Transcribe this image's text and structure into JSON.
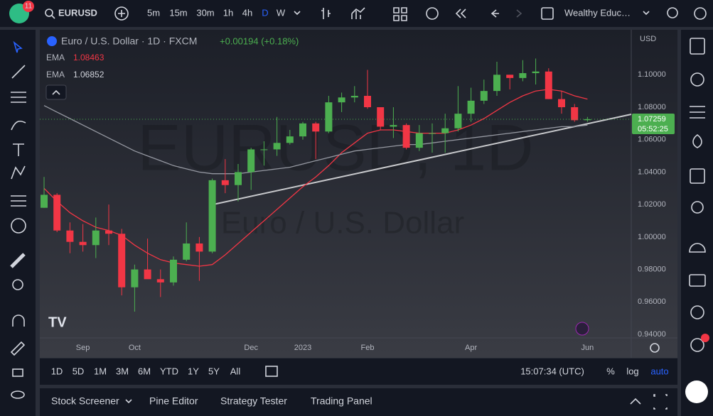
{
  "toolbar": {
    "badge": "11",
    "symbol": "EURUSD",
    "intervals": [
      "5m",
      "15m",
      "30m",
      "1h",
      "4h",
      "D",
      "W"
    ],
    "layout_name": "Wealthy Educ…"
  },
  "chart_data": {
    "type": "candlestick",
    "title": "Euro / U.S. Dollar · 1D · FXCM",
    "change": "+0.00194 (+0.18%)",
    "watermark": [
      "EURUSD, 1D",
      "Euro / U.S. Dollar"
    ],
    "currency": "USD",
    "categories": [
      null,
      null,
      null,
      "Sep",
      null,
      null,
      null,
      "Oct",
      null,
      null,
      null,
      null,
      null,
      null,
      null,
      null,
      "Dec",
      null,
      null,
      null,
      "2023",
      null,
      null,
      null,
      null,
      "Feb",
      null,
      null,
      null,
      null,
      null,
      null,
      null,
      "Apr",
      null,
      null,
      null,
      null,
      null,
      null,
      null,
      null,
      "Jun"
    ],
    "open": [
      1.018,
      1.026,
      1.004,
      0.997,
      0.995,
      1.004,
      1.002,
      0.969,
      0.98,
      0.974,
      0.972,
      0.986,
      0.996,
      0.991,
      1.035,
      1.032,
      1.04,
      1.054,
      1.054,
      1.058,
      1.062,
      1.07,
      1.065,
      1.083,
      1.086,
      1.087,
      1.08,
      1.068,
      1.069,
      1.055,
      1.064,
      1.064,
      1.067,
      1.076,
      1.084,
      1.09,
      1.1,
      1.098,
      1.101,
      1.102,
      1.085,
      1.08,
      1.072
    ],
    "high": [
      1.037,
      1.027,
      1.009,
      1.008,
      1.012,
      1.02,
      1.005,
      0.983,
      0.999,
      0.98,
      0.988,
      1.009,
      1.0,
      1.036,
      1.048,
      1.045,
      1.055,
      1.059,
      1.074,
      1.066,
      1.071,
      1.071,
      1.087,
      1.089,
      1.093,
      1.103,
      1.08,
      1.08,
      1.07,
      1.069,
      1.07,
      1.076,
      1.093,
      1.092,
      1.097,
      1.108,
      1.1,
      1.109,
      1.11,
      1.104,
      1.09,
      1.082,
      1.074
    ],
    "low": [
      1.018,
      1.003,
      0.99,
      0.991,
      0.987,
      0.995,
      0.964,
      0.954,
      0.975,
      0.963,
      0.97,
      0.985,
      0.973,
      0.99,
      1.027,
      1.022,
      1.029,
      1.044,
      1.05,
      1.057,
      1.06,
      1.048,
      1.064,
      1.077,
      1.083,
      1.079,
      1.066,
      1.061,
      1.054,
      1.053,
      1.052,
      1.052,
      1.065,
      1.071,
      1.082,
      1.087,
      1.091,
      1.096,
      1.094,
      1.085,
      1.076,
      1.071,
      1.071
    ],
    "close": [
      1.026,
      1.004,
      0.997,
      0.995,
      1.004,
      1.002,
      0.969,
      0.98,
      0.974,
      0.972,
      0.986,
      0.996,
      0.991,
      1.035,
      1.032,
      1.04,
      1.054,
      1.054,
      1.058,
      1.062,
      1.07,
      1.065,
      1.083,
      1.086,
      1.087,
      1.08,
      1.068,
      1.069,
      1.055,
      1.064,
      1.064,
      1.067,
      1.076,
      1.084,
      1.09,
      1.1,
      1.098,
      1.101,
      1.102,
      1.085,
      1.08,
      1.072,
      1.0726
    ],
    "up_color": "#4caf50",
    "down_color": "#f23645",
    "series": [
      {
        "name": "EMA",
        "color": "#f23645",
        "last": 1.08463,
        "values": [
          1.03,
          1.022,
          1.015,
          1.01,
          1.006,
          1.004,
          1.001,
          0.995,
          0.99,
          0.986,
          0.984,
          0.983,
          0.982,
          0.983,
          0.989,
          0.996,
          1.003,
          1.01,
          1.017,
          1.024,
          1.031,
          1.037,
          1.044,
          1.052,
          1.058,
          1.064,
          1.066,
          1.066,
          1.065,
          1.064,
          1.064,
          1.064,
          1.066,
          1.069,
          1.073,
          1.078,
          1.083,
          1.087,
          1.09,
          1.091,
          1.09,
          1.087,
          1.085
        ]
      },
      {
        "name": "EMA",
        "color": "#9598a1",
        "last": 1.06852,
        "values": [
          1.081,
          1.077,
          1.073,
          1.069,
          1.065,
          1.061,
          1.057,
          1.053,
          1.05,
          1.047,
          1.044,
          1.042,
          1.04,
          1.039,
          1.039,
          1.039,
          1.04,
          1.041,
          1.042,
          1.043,
          1.045,
          1.047,
          1.049,
          1.051,
          1.053,
          1.054,
          1.055,
          1.056,
          1.057,
          1.057,
          1.058,
          1.059,
          1.06,
          1.061,
          1.062,
          1.063,
          1.064,
          1.065,
          1.066,
          1.067,
          1.068,
          1.068,
          1.069
        ]
      }
    ],
    "last_price": 1.07259,
    "countdown": "05:52:25",
    "ylim": [
      0.9378,
      1.1277
    ],
    "yticks": [
      {
        "value": 0.94,
        "label": "0.94000"
      },
      {
        "value": 0.96,
        "label": "0.96000"
      },
      {
        "value": 0.98,
        "label": "0.98000"
      },
      {
        "value": 1.0,
        "label": "1.00000"
      },
      {
        "value": 1.02,
        "label": "1.02000"
      },
      {
        "value": 1.04,
        "label": "1.04000"
      },
      {
        "value": 1.06,
        "label": "1.06000"
      },
      {
        "value": 1.08,
        "label": "1.08000"
      },
      {
        "value": 1.1,
        "label": "1.10000"
      }
    ],
    "grid": false
  },
  "bottom_bar": {
    "ranges": [
      "1D",
      "5D",
      "1M",
      "3M",
      "6M",
      "YTD",
      "1Y",
      "5Y",
      "All"
    ],
    "clock": "15:07:34 (UTC)",
    "scale_options": [
      "%",
      "log",
      "auto"
    ]
  },
  "panels": [
    "Stock Screener",
    "Pine Editor",
    "Strategy Tester",
    "Trading Panel"
  ]
}
